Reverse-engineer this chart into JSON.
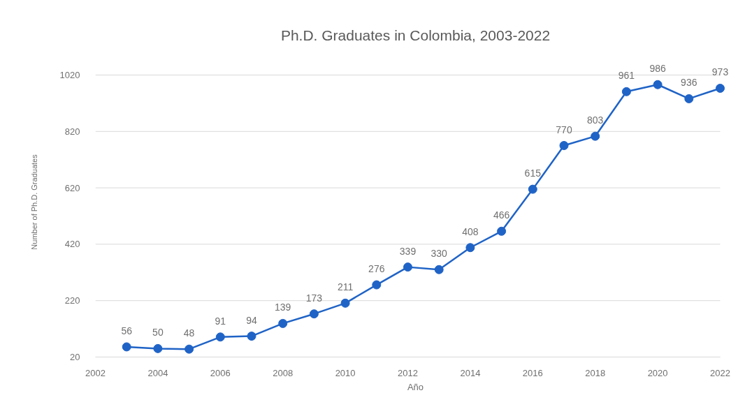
{
  "chart_data": {
    "type": "line",
    "title": "Ph.D. Graduates in Colombia, 2003-2022",
    "xlabel": "Año",
    "ylabel": "Number of Ph.D. Graduates",
    "x": [
      2003,
      2004,
      2005,
      2006,
      2007,
      2008,
      2009,
      2010,
      2011,
      2012,
      2013,
      2014,
      2015,
      2016,
      2017,
      2018,
      2019,
      2020,
      2021,
      2022
    ],
    "series": [
      {
        "color": "#1f63c6",
        "values": [
          56,
          50,
          48,
          91,
          94,
          139,
          173,
          211,
          276,
          339,
          330,
          408,
          466,
          615,
          770,
          803,
          961,
          986,
          936,
          973
        ]
      }
    ],
    "xlim": [
      2002,
      2022
    ],
    "xticks": [
      2002,
      2004,
      2006,
      2008,
      2010,
      2012,
      2014,
      2016,
      2018,
      2020,
      2022
    ],
    "ylim": [
      20,
      1020
    ],
    "yticks": [
      20,
      220,
      420,
      620,
      820,
      1020
    ],
    "grid": "y",
    "marker": "circle",
    "line_style": "solid",
    "data_labels": true
  }
}
